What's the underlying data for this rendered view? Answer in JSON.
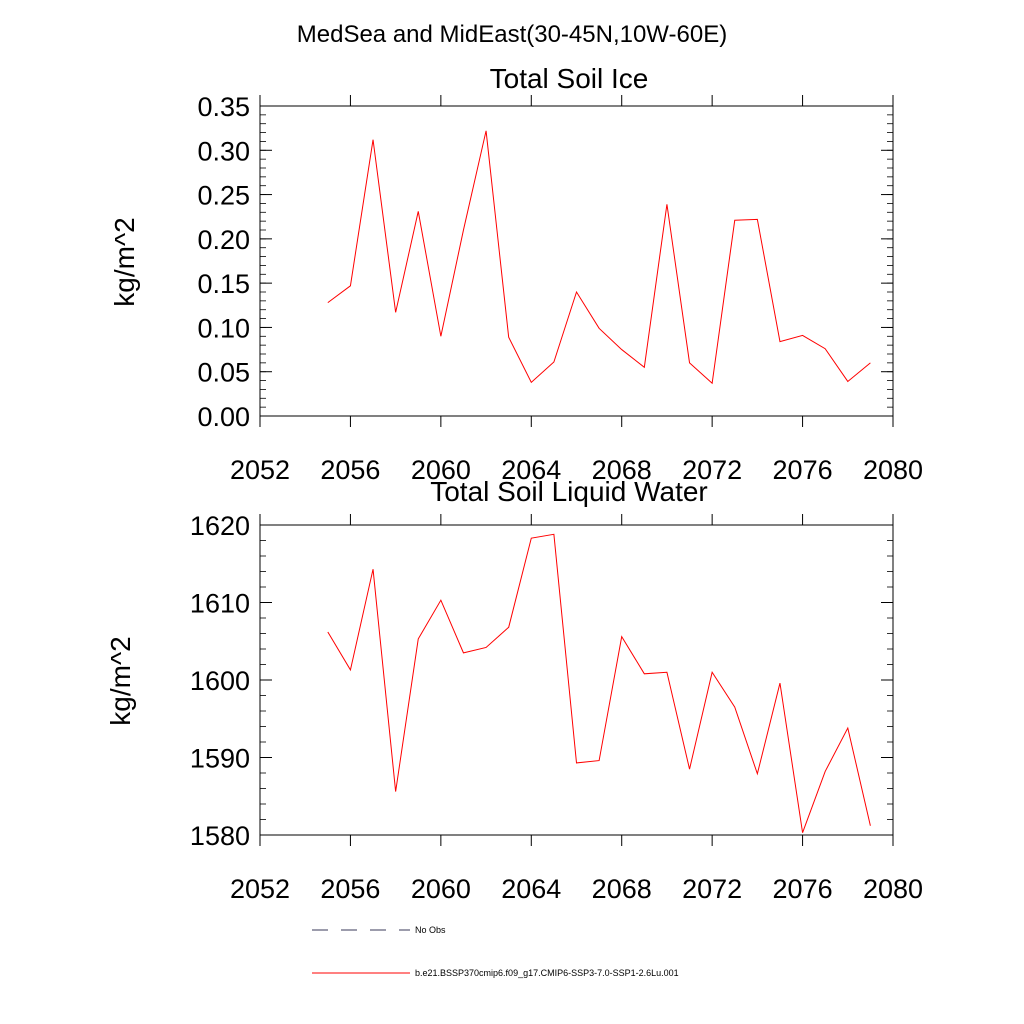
{
  "page_title": "MedSea and MidEast(30-45N,10W-60E)",
  "chart_data": [
    {
      "type": "line",
      "title": "Total Soil Ice",
      "xlabel": "",
      "ylabel": "kg/m^2",
      "xlim": [
        2052,
        2080
      ],
      "ylim": [
        0,
        0.35
      ],
      "xticks": [
        2052,
        2056,
        2060,
        2064,
        2068,
        2072,
        2076,
        2080
      ],
      "xtick_labels": [
        "2052",
        "2056",
        "2060",
        "2064",
        "2068",
        "2072",
        "2076",
        "2080"
      ],
      "yticks": [
        0,
        0.05,
        0.1,
        0.15,
        0.2,
        0.25,
        0.3,
        0.35
      ],
      "ytick_labels": [
        "0.00",
        "0.05",
        "0.10",
        "0.15",
        "0.20",
        "0.25",
        "0.30",
        "0.35"
      ],
      "x": [
        2055,
        2056,
        2057,
        2058,
        2059,
        2060,
        2061,
        2062,
        2063,
        2064,
        2065,
        2066,
        2067,
        2068,
        2069,
        2070,
        2071,
        2072,
        2073,
        2074,
        2075,
        2076,
        2077,
        2078,
        2079
      ],
      "series": [
        {
          "name": "b.e21.BSSP370cmip6.f09_g17.CMIP6-SSP3-7.0-SSP1-2.6Lu.001",
          "color": "#ff0000",
          "values": [
            0.128,
            0.147,
            0.312,
            0.117,
            0.231,
            0.09,
            0.21,
            0.322,
            0.089,
            0.038,
            0.061,
            0.14,
            0.099,
            0.075,
            0.055,
            0.239,
            0.06,
            0.037,
            0.221,
            0.222,
            0.084,
            0.091,
            0.076,
            0.039,
            0.06
          ]
        }
      ]
    },
    {
      "type": "line",
      "title": "Total Soil Liquid Water",
      "xlabel": "",
      "ylabel": "kg/m^2",
      "xlim": [
        2052,
        2080
      ],
      "ylim": [
        1580,
        1620
      ],
      "xticks": [
        2052,
        2056,
        2060,
        2064,
        2068,
        2072,
        2076,
        2080
      ],
      "xtick_labels": [
        "2052",
        "2056",
        "2060",
        "2064",
        "2068",
        "2072",
        "2076",
        "2080"
      ],
      "yticks": [
        1580,
        1590,
        1600,
        1610,
        1620
      ],
      "ytick_labels": [
        "1580",
        "1590",
        "1600",
        "1610",
        "1620"
      ],
      "x": [
        2055,
        2056,
        2057,
        2058,
        2059,
        2060,
        2061,
        2062,
        2063,
        2064,
        2065,
        2066,
        2067,
        2068,
        2069,
        2070,
        2071,
        2072,
        2073,
        2074,
        2075,
        2076,
        2077,
        2078,
        2079
      ],
      "series": [
        {
          "name": "b.e21.BSSP370cmip6.f09_g17.CMIP6-SSP3-7.0-SSP1-2.6Lu.001",
          "color": "#ff0000",
          "values": [
            1606.2,
            1601.3,
            1614.3,
            1585.6,
            1605.3,
            1610.3,
            1603.5,
            1604.2,
            1606.8,
            1618.3,
            1618.8,
            1589.3,
            1589.6,
            1605.6,
            1600.8,
            1601.0,
            1588.5,
            1601.0,
            1596.5,
            1587.9,
            1599.6,
            1580.3,
            1588.2,
            1593.8,
            1581.2
          ]
        }
      ]
    }
  ],
  "legend": {
    "position": "bottom-left",
    "entries": [
      {
        "label": "No Obs",
        "color": "#3a3a5a",
        "style": "dashed"
      },
      {
        "label": "b.e21.BSSP370cmip6.f09_g17.CMIP6-SSP3-7.0-SSP1-2.6Lu.001",
        "color": "#ff0000",
        "style": "solid"
      }
    ]
  }
}
